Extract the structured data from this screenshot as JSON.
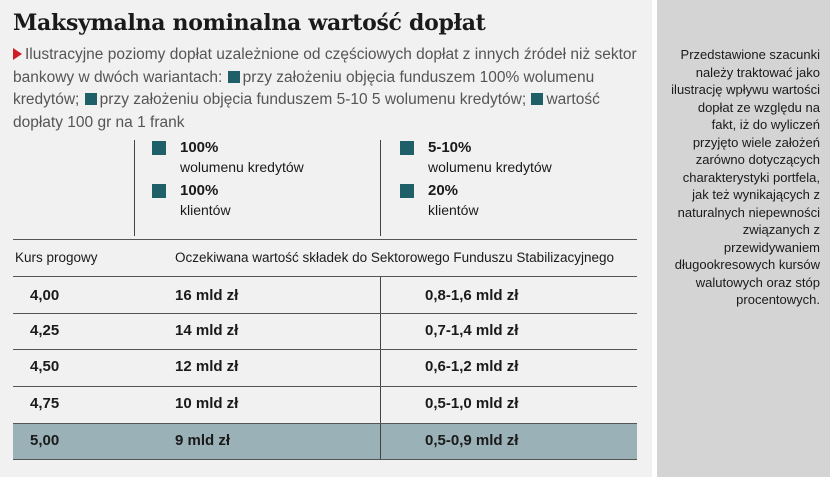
{
  "title": "Maksymalna nominalna wartość dopłat",
  "intro": {
    "part1": "Ilustracyjne poziomy dopłat uzależnione od częściowych dopłat z innych źródeł niż sektor bankowy w dwóch wariantach:",
    "part2": "przy założeniu objęcia funduszem 100% wolumenu kredytów;",
    "part3": "przy założeniu objęcia funduszem 5-10 5 wolumenu kredytów;",
    "part4": "wartość dopłaty 100 gr na 1 frank"
  },
  "variant_a": {
    "pct1": "100%",
    "label1": "wolumenu kredytów",
    "pct2": "100%",
    "label2": "klientów"
  },
  "variant_b": {
    "pct1": "5-10%",
    "label1": "wolumenu kredytów",
    "pct2": "20%",
    "label2": "klientów"
  },
  "table": {
    "col1_header": "Kurs progowy",
    "col2_header": "Oczekiwana wartość składek do Sektorowego Funduszu Stabilizacyjnego",
    "rows": [
      {
        "rate": "4,00",
        "a": "16 mld zł",
        "b": "0,8-1,6 mld zł"
      },
      {
        "rate": "4,25",
        "a": "14 mld zł",
        "b": "0,7-1,4 mld zł"
      },
      {
        "rate": "4,50",
        "a": "12 mld zł",
        "b": "0,6-1,2 mld zł"
      },
      {
        "rate": "4,75",
        "a": "10 mld zł",
        "b": "0,5-1,0 mld zł"
      },
      {
        "rate": "5,00",
        "a": "9 mld zł",
        "b": "0,5-0,9 mld zł"
      }
    ]
  },
  "sidebar_text": "Przedstawione szacunki należy traktować jako ilustrację wpływu wartości dopłat ze względu na fakt, iż do wyliczeń przyjęto wiele założeń zarówno dotyczących charakterystyki portfela, jak też wynikających z naturalnych niepewności związanych z przewidywaniem długookresowych kursów walutowych oraz stóp procentowych.",
  "colors": {
    "accent_square": "#1f5f68",
    "highlight_row": "#9ab1b8",
    "arrow": "#d01c25"
  }
}
